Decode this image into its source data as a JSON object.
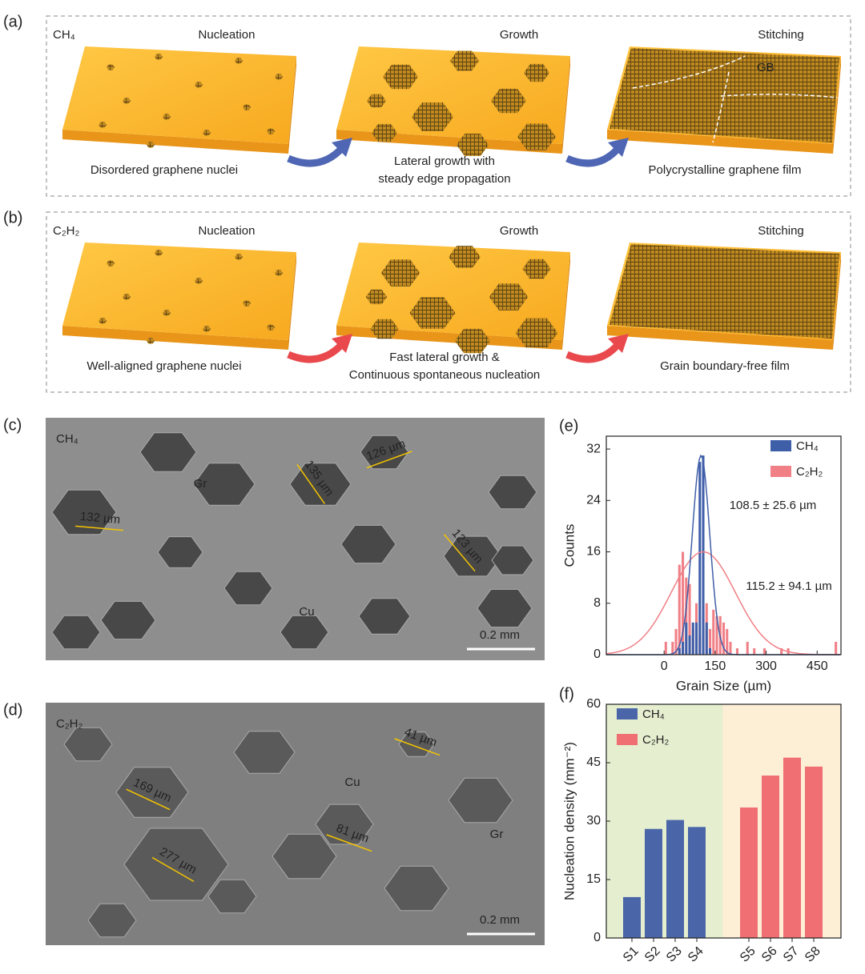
{
  "schematic": [
    {
      "label": "(a)",
      "gas": "CH₄",
      "stages": [
        "Nucleation",
        "Growth",
        "Stitching"
      ],
      "captions": [
        [
          "Disordered graphene nuclei"
        ],
        [
          "Lateral growth with",
          "steady edge propagation"
        ],
        [
          "Polycrystalline graphene film"
        ]
      ],
      "annotation": "GB",
      "caption_color": "#2d4ba0",
      "arrow_color": "#4e66b3"
    },
    {
      "label": "(b)",
      "gas": "C₂H₂",
      "stages": [
        "Nucleation",
        "Growth",
        "Stitching"
      ],
      "captions": [
        [
          "Well-aligned graphene nuclei"
        ],
        [
          "Fast lateral growth &",
          "Continuous spontaneous nucleation"
        ],
        [
          "Grain boundary-free film"
        ]
      ],
      "caption_color": "#e0262e",
      "arrow_color": "#e9494d"
    }
  ],
  "images": [
    {
      "label": "(c)",
      "gas": "CH₄",
      "annotations": [
        "Gr",
        "Cu"
      ],
      "measurements": [
        "132 µm",
        "135 µm",
        "126 µm",
        "123 µm"
      ],
      "scale_bar": "0.2 mm"
    },
    {
      "label": "(d)",
      "gas": "C₂H₂",
      "annotations": [
        "Cu",
        "Gr"
      ],
      "measurements": [
        "169 µm",
        "277 µm",
        "41 µm",
        "81 µm"
      ],
      "scale_bar": "0.2 mm"
    }
  ],
  "chart_data": [
    {
      "type": "histogram",
      "label": "(e)",
      "xlabel": "Grain Size (µm)",
      "ylabel": "Counts",
      "xlim": [
        -170,
        520
      ],
      "xticks": [
        0,
        150,
        300,
        450
      ],
      "ylim": [
        0,
        34
      ],
      "yticks": [
        0,
        8,
        16,
        24,
        32
      ],
      "legend": "upper right",
      "series": [
        {
          "name": "C₂H₂",
          "color": "#f07f86",
          "fit_label": "115.2 ± 94.1 µm",
          "fit_mean": 115.2,
          "fit_sd": 94.1,
          "fit_peak": 16,
          "bins": [
            0,
            10,
            20,
            30,
            40,
            50,
            60,
            70,
            80,
            90,
            100,
            110,
            120,
            130,
            140,
            150,
            160,
            170,
            180,
            190,
            200,
            210,
            220,
            230,
            240,
            250,
            260,
            270,
            280,
            290,
            300,
            310,
            320,
            330,
            340,
            350,
            360,
            370,
            380,
            390,
            400,
            410,
            420,
            430,
            440,
            450,
            460,
            470,
            480,
            490,
            500,
            510
          ],
          "counts": [
            2,
            0,
            2,
            4,
            14,
            16,
            12,
            11,
            4,
            8,
            3,
            7,
            8,
            4,
            7,
            6,
            6,
            5,
            4,
            2,
            0,
            1,
            0,
            0,
            2,
            0,
            1,
            0,
            0,
            1,
            0,
            0,
            0,
            0,
            1,
            0,
            1,
            0,
            0,
            0,
            0,
            0,
            0,
            0,
            0,
            0,
            0,
            0,
            0,
            0,
            2
          ]
        },
        {
          "name": "CH₄",
          "color": "#3f5ea8",
          "fit_label": "108.5 ± 25.6 µm",
          "fit_mean": 108.5,
          "fit_sd": 25.6,
          "fit_peak": 31,
          "bins": [
            40,
            50,
            60,
            70,
            80,
            90,
            100,
            110,
            120,
            130,
            140
          ],
          "counts": [
            1,
            2,
            5,
            3,
            5,
            5,
            30,
            31,
            5,
            1
          ]
        }
      ]
    },
    {
      "type": "bar",
      "label": "(f)",
      "ylabel": "Nucleation density (mm⁻²)",
      "categories": [
        "S1",
        "S2",
        "S3",
        "S4",
        "S5",
        "S6",
        "S7",
        "S8"
      ],
      "ylim": [
        0,
        60
      ],
      "yticks": [
        0,
        15,
        30,
        45,
        60
      ],
      "legend": "upper left",
      "background_colors": [
        "#e5efd0",
        "#fdeed6"
      ],
      "series": [
        {
          "name": "CH₄",
          "color": "#4a65a8",
          "values": [
            10.5,
            28,
            30.3,
            28.5,
            null,
            null,
            null,
            null
          ]
        },
        {
          "name": "C₂H₂",
          "color": "#ef6f73",
          "values": [
            null,
            null,
            null,
            null,
            33.5,
            41.7,
            46.3,
            44
          ]
        }
      ]
    }
  ]
}
